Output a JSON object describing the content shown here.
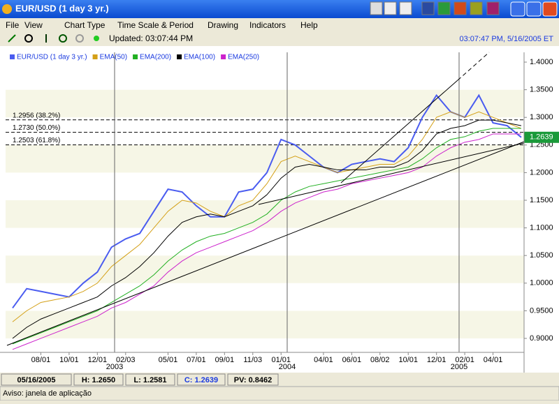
{
  "ui": {
    "title": "EUR/USD (1 day  3 yr.)",
    "menus": [
      "File",
      "View",
      "Chart Type",
      "Time Scale & Period",
      "Drawing",
      "Indicators",
      "Help"
    ],
    "updated": "Updated: 03:07:44 PM",
    "clock": "03:07:47 PM, 5/16/2005 ET"
  },
  "status": {
    "items": [
      "05/16/2005",
      "H: 1.2650",
      "L: 1.2581",
      "C: 1.2639",
      "PV: 0.8462"
    ],
    "message": "Aviso: janela de aplicação"
  },
  "chart_data": {
    "type": "line",
    "categories": [
      null,
      null,
      "08/01",
      null,
      "10/01",
      null,
      "12/01",
      null,
      "02/03",
      null,
      null,
      "05/01",
      null,
      "07/01",
      null,
      "09/01",
      null,
      "11/03",
      null,
      "01/01",
      null,
      null,
      "04/01",
      null,
      "06/01",
      null,
      "08/02",
      null,
      "10/01",
      null,
      "12/01",
      null,
      "02/01",
      null,
      "04/01",
      null,
      null
    ],
    "years": [
      "2003",
      "2004",
      "2005"
    ],
    "series": [
      {
        "name": "EUR/USD (1 day  3 yr.)",
        "color": "#4a5cf0",
        "values": [
          0.955,
          0.99,
          0.985,
          0.98,
          0.975,
          1.0,
          1.02,
          1.065,
          1.08,
          1.09,
          1.13,
          1.17,
          1.165,
          1.14,
          1.12,
          1.12,
          1.165,
          1.17,
          1.2,
          1.26,
          1.25,
          1.23,
          1.21,
          1.2,
          1.215,
          1.22,
          1.225,
          1.22,
          1.245,
          1.3,
          1.34,
          1.31,
          1.3,
          1.34,
          1.29,
          1.285,
          1.2639
        ]
      },
      {
        "name": "EMA(50)",
        "color": "#d4a017",
        "values": [
          0.93,
          0.95,
          0.965,
          0.97,
          0.975,
          0.985,
          1.0,
          1.03,
          1.05,
          1.07,
          1.1,
          1.13,
          1.15,
          1.145,
          1.13,
          1.12,
          1.14,
          1.15,
          1.18,
          1.22,
          1.23,
          1.22,
          1.21,
          1.2,
          1.205,
          1.21,
          1.215,
          1.215,
          1.23,
          1.26,
          1.3,
          1.31,
          1.3,
          1.31,
          1.3,
          1.29,
          1.28
        ]
      },
      {
        "name": "EMA(200)",
        "color": "#22b022",
        "values": [
          0.89,
          0.9,
          0.91,
          0.92,
          0.93,
          0.94,
          0.95,
          0.965,
          0.98,
          0.995,
          1.015,
          1.04,
          1.06,
          1.075,
          1.085,
          1.09,
          1.1,
          1.11,
          1.125,
          1.15,
          1.165,
          1.175,
          1.18,
          1.185,
          1.19,
          1.195,
          1.2,
          1.205,
          1.21,
          1.225,
          1.245,
          1.26,
          1.265,
          1.275,
          1.28,
          1.28,
          1.28
        ]
      },
      {
        "name": "EMA(100)",
        "color": "#000000",
        "values": [
          0.9,
          0.92,
          0.935,
          0.945,
          0.955,
          0.965,
          0.975,
          0.995,
          1.01,
          1.03,
          1.055,
          1.085,
          1.11,
          1.12,
          1.125,
          1.12,
          1.13,
          1.14,
          1.16,
          1.19,
          1.21,
          1.215,
          1.21,
          1.205,
          1.205,
          1.205,
          1.21,
          1.21,
          1.22,
          1.24,
          1.27,
          1.28,
          1.285,
          1.295,
          1.295,
          1.29,
          1.285
        ]
      },
      {
        "name": "EMA(250)",
        "color": "#cc22cc",
        "values": [
          0.88,
          0.89,
          0.9,
          0.91,
          0.92,
          0.93,
          0.94,
          0.955,
          0.965,
          0.98,
          0.995,
          1.02,
          1.04,
          1.055,
          1.065,
          1.075,
          1.085,
          1.095,
          1.11,
          1.13,
          1.145,
          1.155,
          1.165,
          1.17,
          1.18,
          1.185,
          1.19,
          1.195,
          1.2,
          1.21,
          1.23,
          1.245,
          1.255,
          1.26,
          1.27,
          1.27,
          1.27
        ]
      }
    ],
    "levels": [
      {
        "value": 1.2956,
        "label": "1.2956 (38.2%)"
      },
      {
        "value": 1.273,
        "label": "1.2730 (50.0%)"
      },
      {
        "value": 1.2503,
        "label": "1.2503 (61.8%)"
      }
    ],
    "last": 1.2639,
    "last_color": "#1a9a3a",
    "ylim": [
      0.8747,
      1.4177
    ],
    "yticks": [
      {
        "value": 0.9,
        "label": "0.9000"
      },
      {
        "value": 0.95,
        "label": "0.9500"
      },
      {
        "value": 1.0,
        "label": "1.0000"
      },
      {
        "value": 1.05,
        "label": "1.0500"
      },
      {
        "value": 1.1,
        "label": "1.1000"
      },
      {
        "value": 1.15,
        "label": "1.1500"
      },
      {
        "value": 1.2,
        "label": "1.2000"
      },
      {
        "value": 1.25,
        "label": "1.2500"
      },
      {
        "value": 1.3,
        "label": "1.3000"
      },
      {
        "value": 1.35,
        "label": "1.3500"
      },
      {
        "value": 1.4,
        "label": "1.4000"
      }
    ],
    "grid": true
  }
}
